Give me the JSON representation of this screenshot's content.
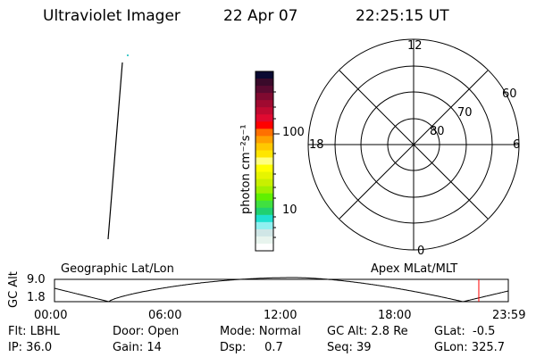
{
  "header": {
    "title": "Ultraviolet Imager",
    "date": "22 Apr 07",
    "time": "22:25:15 UT"
  },
  "colorbar": {
    "label": "photon cm⁻²s⁻¹",
    "ticks": [
      "100",
      "10"
    ],
    "colors": [
      "#0a0a32",
      "#3a0a2a",
      "#5a0a30",
      "#800a30",
      "#a00a30",
      "#c00a30",
      "#e00a30",
      "#ff0000",
      "#ff7000",
      "#ffa000",
      "#ffc800",
      "#ffe600",
      "#ffff80",
      "#ffff00",
      "#e6f500",
      "#c8f000",
      "#a0f000",
      "#60f000",
      "#40e040",
      "#20d070",
      "#20e0d0",
      "#90f0f0",
      "#d0e6e6",
      "#e8f4ee",
      "#ffffff"
    ]
  },
  "polar": {
    "mlt_labels": {
      "top": "12",
      "left": "18",
      "right": "6",
      "bottom": "0"
    },
    "lat_labels": [
      "60",
      "70",
      "80"
    ]
  },
  "timeline": {
    "left_label": "Geographic Lat/Lon",
    "right_label": "Apex MLat/MLT",
    "ylabel": "GC Alt",
    "yticks": [
      "9.0",
      "1.8"
    ],
    "xticks": [
      "00:00",
      "06:00",
      "12:00",
      "18:00",
      "23:59"
    ],
    "current_time_fraction": 0.935,
    "marker_color": "#ff0000"
  },
  "status": {
    "flt": "Flt: LBHL",
    "door": "Door: Open",
    "mode": "Mode: Normal",
    "gcalt": "GC Alt: 2.8 Re",
    "glat": "GLat:  -0.5",
    "ip": "IP: 36.0",
    "gain": "Gain: 14",
    "dsp": "Dsp:     0.7",
    "seq": "Seq: 39",
    "glon": "GLon: 325.7"
  }
}
